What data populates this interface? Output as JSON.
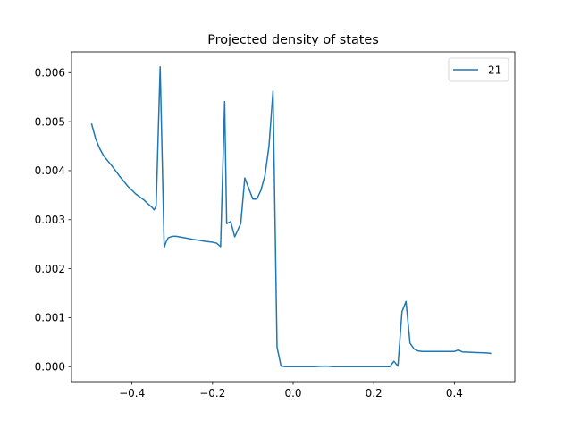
{
  "chart_data": {
    "type": "line",
    "title": "Projected density of states",
    "xlabel": "",
    "ylabel": "",
    "xlim": [
      -0.55,
      0.55
    ],
    "ylim": [
      -0.000306,
      0.006425
    ],
    "x_ticks": [
      -0.4,
      -0.2,
      0.0,
      0.2,
      0.4
    ],
    "x_tick_labels": [
      "−0.4",
      "−0.2",
      "0.0",
      "0.2",
      "0.4"
    ],
    "y_ticks": [
      0.0,
      0.001,
      0.002,
      0.003,
      0.004,
      0.005,
      0.006
    ],
    "y_tick_labels": [
      "0.000",
      "0.001",
      "0.002",
      "0.003",
      "0.004",
      "0.005",
      "0.006"
    ],
    "grid": false,
    "legend": {
      "position": "top-right",
      "entries": [
        "21"
      ]
    },
    "series": [
      {
        "name": "21",
        "color": "#1f77b4",
        "x": [
          -0.5,
          -0.49,
          -0.48,
          -0.47,
          -0.45,
          -0.43,
          -0.41,
          -0.39,
          -0.37,
          -0.36,
          -0.35,
          -0.345,
          -0.34,
          -0.33,
          -0.32,
          -0.315,
          -0.31,
          -0.3,
          -0.29,
          -0.27,
          -0.25,
          -0.22,
          -0.2,
          -0.19,
          -0.18,
          -0.17,
          -0.165,
          -0.155,
          -0.145,
          -0.13,
          -0.12,
          -0.1,
          -0.09,
          -0.08,
          -0.07,
          -0.06,
          -0.05,
          -0.04,
          -0.03,
          -0.02,
          0.0,
          0.05,
          0.08,
          0.1,
          0.15,
          0.2,
          0.24,
          0.25,
          0.26,
          0.27,
          0.28,
          0.29,
          0.3,
          0.31,
          0.32,
          0.34,
          0.36,
          0.38,
          0.4,
          0.41,
          0.42,
          0.45,
          0.48,
          0.49
        ],
        "y": [
          0.00495,
          0.00465,
          0.00445,
          0.0043,
          0.0041,
          0.00388,
          0.00368,
          0.00352,
          0.0034,
          0.00332,
          0.00325,
          0.0032,
          0.00328,
          0.00612,
          0.00243,
          0.00255,
          0.00263,
          0.00266,
          0.00266,
          0.00263,
          0.0026,
          0.00256,
          0.00254,
          0.00252,
          0.00245,
          0.00541,
          0.00292,
          0.00296,
          0.00265,
          0.00292,
          0.00385,
          0.00342,
          0.00342,
          0.0036,
          0.0039,
          0.0045,
          0.00562,
          0.0004,
          1e-05,
          0.0,
          0.0,
          0.0,
          1e-05,
          0.0,
          0.0,
          0.0,
          0.0,
          0.00011,
          1e-05,
          0.00112,
          0.00133,
          0.00048,
          0.00036,
          0.00032,
          0.00031,
          0.00031,
          0.00031,
          0.00031,
          0.00031,
          0.00034,
          0.0003,
          0.00029,
          0.00028,
          0.00027
        ]
      }
    ]
  }
}
